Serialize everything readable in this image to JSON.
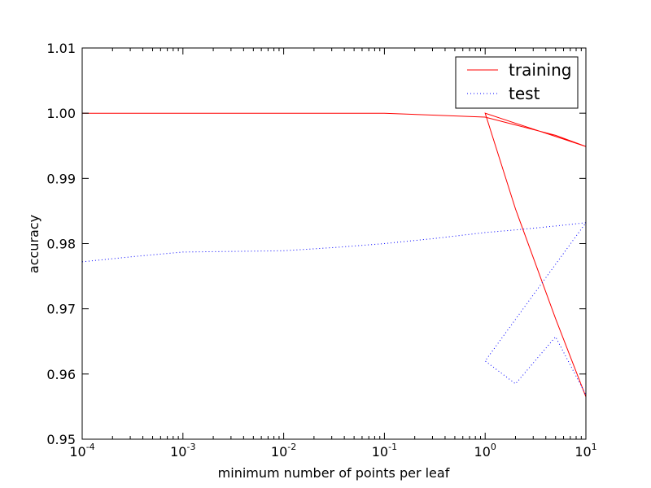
{
  "chart_data": {
    "type": "line",
    "title": "",
    "xlabel": "minimum number of points per leaf",
    "ylabel": "accuracy",
    "xscale": "log",
    "xlim": [
      0.0001,
      10
    ],
    "ylim": [
      0.95,
      1.01
    ],
    "x_ticks": [
      {
        "base": "10",
        "exp": "-4",
        "value": 0.0001
      },
      {
        "base": "10",
        "exp": "-3",
        "value": 0.001
      },
      {
        "base": "10",
        "exp": "-2",
        "value": 0.01
      },
      {
        "base": "10",
        "exp": "-1",
        "value": 0.1
      },
      {
        "base": "10",
        "exp": "0",
        "value": 1
      },
      {
        "base": "10",
        "exp": "1",
        "value": 10
      }
    ],
    "y_ticks": [
      "0.95",
      "0.96",
      "0.97",
      "0.98",
      "0.99",
      "1.00",
      "1.01"
    ],
    "grid": false,
    "legend_position": "top-right",
    "series": [
      {
        "name": "training",
        "color": "#ff0000",
        "style": "solid",
        "points": [
          [
            0.0001,
            1.0
          ],
          [
            0.00032,
            1.0
          ],
          [
            0.001,
            1.0
          ],
          [
            0.0032,
            1.0
          ],
          [
            0.01,
            1.0
          ],
          [
            0.032,
            1.0
          ],
          [
            0.1,
            1.0
          ],
          [
            0.32,
            0.9997
          ],
          [
            1,
            0.9994
          ],
          [
            2,
            0.9982
          ],
          [
            5,
            0.9966
          ],
          [
            10,
            0.9949
          ],
          [
            1,
            1.0
          ],
          [
            2,
            0.9853
          ],
          [
            5,
            0.9685
          ],
          [
            10,
            0.9565
          ]
        ]
      },
      {
        "name": "test",
        "color": "#0000ff",
        "style": "dotted",
        "points": [
          [
            0.0001,
            0.9772
          ],
          [
            0.00032,
            0.978
          ],
          [
            0.001,
            0.9787
          ],
          [
            0.0032,
            0.9788
          ],
          [
            0.01,
            0.9789
          ],
          [
            0.032,
            0.9794
          ],
          [
            0.1,
            0.98
          ],
          [
            0.32,
            0.9808
          ],
          [
            1,
            0.9817
          ],
          [
            2,
            0.9821
          ],
          [
            5,
            0.9827
          ],
          [
            10,
            0.9832
          ],
          [
            1,
            0.962
          ],
          [
            2,
            0.9585
          ],
          [
            5,
            0.9657
          ],
          [
            10,
            0.9568
          ]
        ]
      }
    ]
  }
}
